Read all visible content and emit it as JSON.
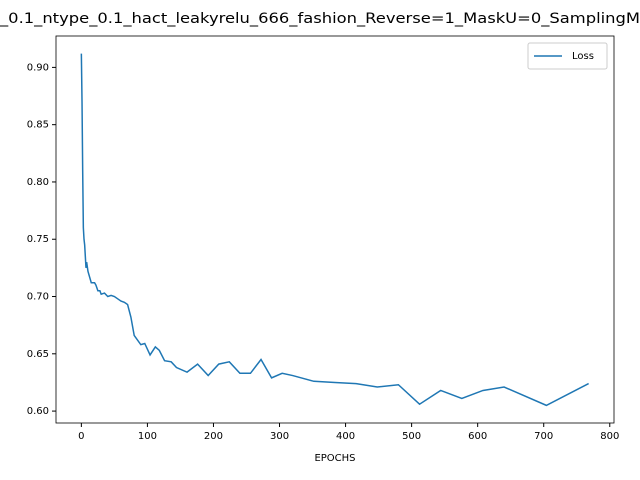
{
  "chart_data": {
    "type": "line",
    "title": "_0.1_ntype_0.1_hact_leakyrelu_666_fashion_Reverse=1_MaskU=0_SamplingM",
    "x_label": "EPOCHS",
    "x": [
      0,
      1,
      2,
      3,
      4,
      5,
      6,
      7,
      8,
      10,
      12,
      15,
      20,
      22,
      25,
      28,
      30,
      35,
      40,
      45,
      50,
      55,
      60,
      65,
      70,
      75,
      80,
      90,
      96,
      104,
      112,
      118,
      126,
      136,
      144,
      160,
      176,
      192,
      208,
      224,
      240,
      256,
      272,
      288,
      304,
      320,
      352,
      384,
      416,
      448,
      480,
      512,
      544,
      576,
      608,
      640,
      704,
      768
    ],
    "series": [
      {
        "name": "Loss",
        "color": "#1f77b4",
        "values": [
          0.912,
          0.87,
          0.81,
          0.76,
          0.75,
          0.745,
          0.735,
          0.725,
          0.73,
          0.722,
          0.718,
          0.712,
          0.712,
          0.71,
          0.705,
          0.705,
          0.702,
          0.703,
          0.7,
          0.701,
          0.7,
          0.698,
          0.696,
          0.695,
          0.693,
          0.682,
          0.666,
          0.658,
          0.659,
          0.649,
          0.656,
          0.653,
          0.644,
          0.643,
          0.638,
          0.634,
          0.641,
          0.631,
          0.641,
          0.643,
          0.633,
          0.633,
          0.645,
          0.629,
          0.633,
          0.631,
          0.626,
          0.625,
          0.624,
          0.621,
          0.623,
          0.606,
          0.618,
          0.611,
          0.618,
          0.621,
          0.605,
          0.624
        ]
      }
    ],
    "xlim": [
      -38.4,
      806.4
    ],
    "xticks": [
      0,
      100,
      200,
      300,
      400,
      500,
      600,
      700,
      800
    ],
    "ylim": [
      0.5896,
      0.9274
    ],
    "yticks": [
      {
        "value": 0.6,
        "label": "0.60"
      },
      {
        "value": 0.65,
        "label": "0.65"
      },
      {
        "value": 0.7,
        "label": "0.70"
      },
      {
        "value": 0.75,
        "label": "0.75"
      },
      {
        "value": 0.8,
        "label": "0.80"
      },
      {
        "value": 0.85,
        "label": "0.85"
      },
      {
        "value": 0.9,
        "label": "0.90"
      }
    ],
    "legend": "upper right"
  }
}
